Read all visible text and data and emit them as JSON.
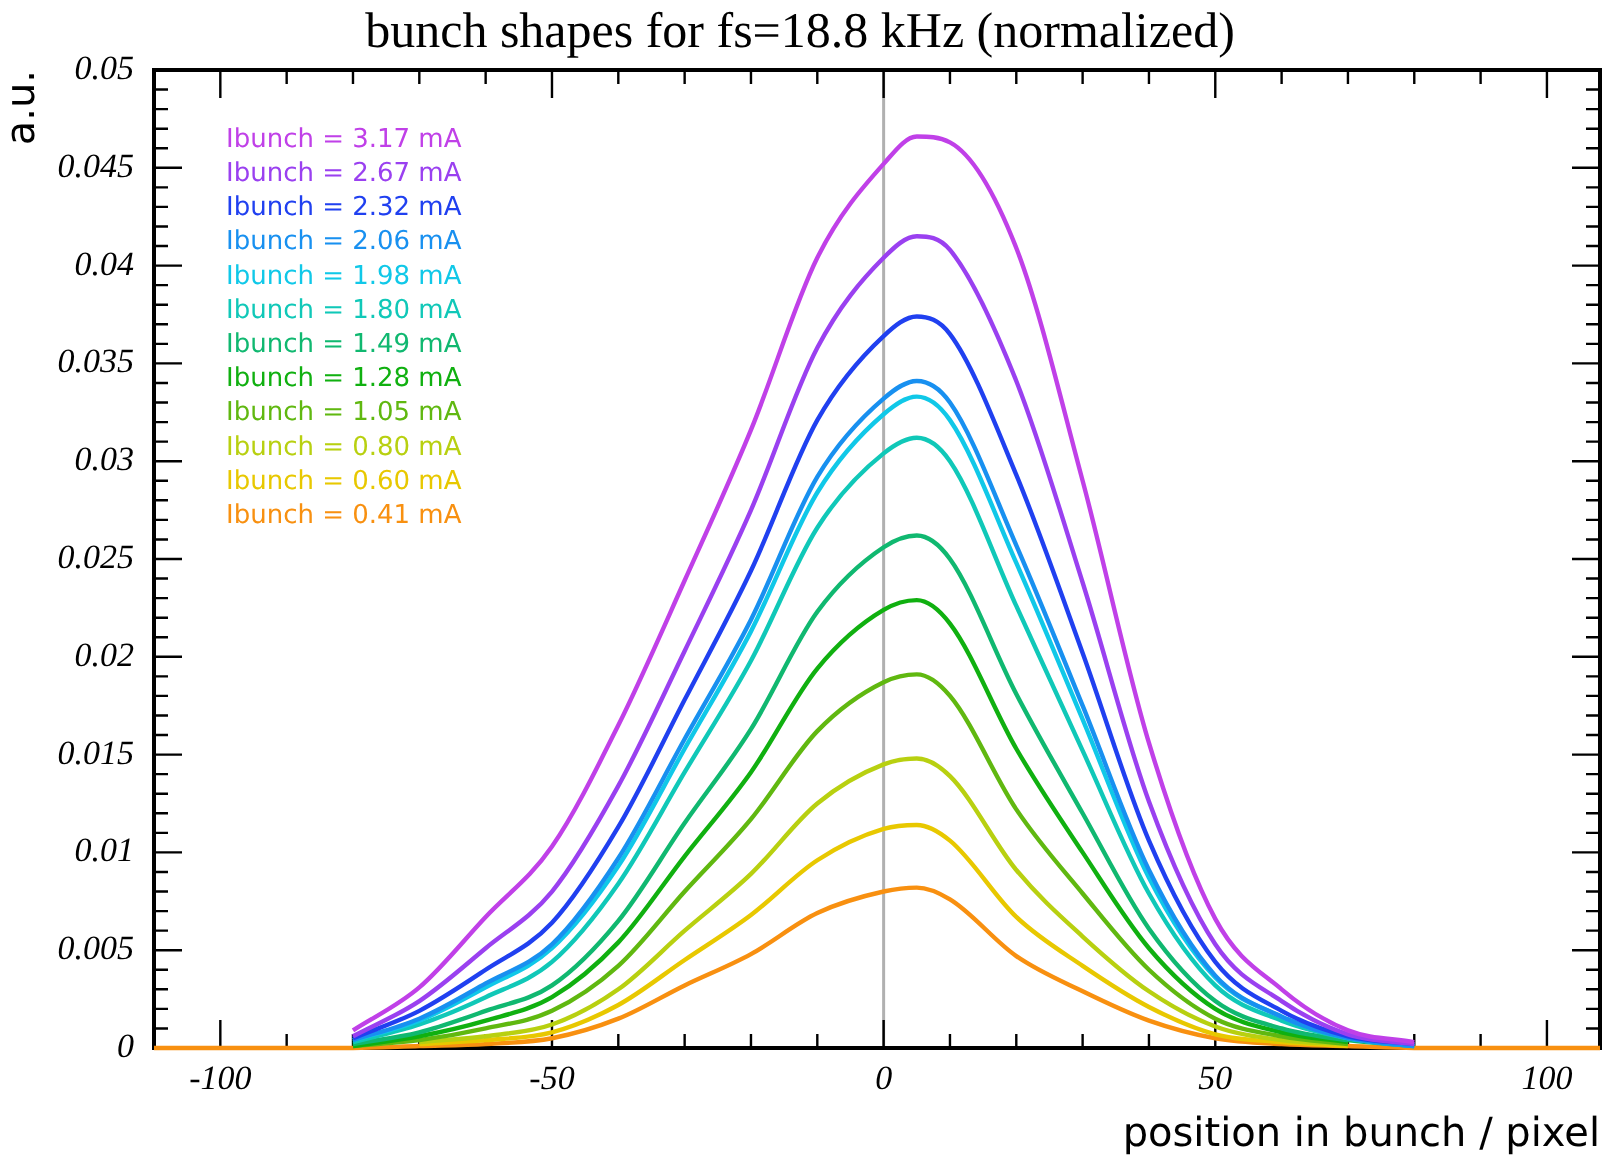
{
  "chart_data": {
    "type": "line",
    "title": "bunch shapes for fs=18.8 kHz (normalized)",
    "xlabel": "position in bunch / pixel",
    "ylabel": "a.u.",
    "x": [
      -110,
      -90,
      -80,
      -70,
      -60,
      -50,
      -40,
      -30,
      -20,
      -10,
      0,
      5,
      10,
      20,
      30,
      40,
      50,
      60,
      70,
      80,
      90,
      108
    ],
    "xlim": [
      -110,
      108
    ],
    "xticks": [
      {
        "value": -110,
        "label": null
      },
      -100,
      {
        "value": -90,
        "label": null
      },
      {
        "value": -80,
        "label": null
      },
      {
        "value": -70,
        "label": null
      },
      {
        "value": -60,
        "label": null
      },
      -50,
      {
        "value": -40,
        "label": null
      },
      {
        "value": -30,
        "label": null
      },
      {
        "value": -20,
        "label": null
      },
      {
        "value": -10,
        "label": null
      },
      0,
      {
        "value": 10,
        "label": null
      },
      {
        "value": 20,
        "label": null
      },
      {
        "value": 30,
        "label": null
      },
      {
        "value": 40,
        "label": null
      },
      50,
      {
        "value": 60,
        "label": null
      },
      {
        "value": 70,
        "label": null
      },
      {
        "value": 80,
        "label": null
      },
      {
        "value": 90,
        "label": null
      },
      100
    ],
    "ylim": [
      0,
      0.05
    ],
    "yticks": [
      0,
      0.005,
      0.01,
      0.015,
      0.02,
      0.025,
      0.03,
      0.035,
      0.04,
      0.045,
      0.05
    ],
    "legend": "top left",
    "marker": "none",
    "line_style": "solid",
    "grid": false,
    "ref_lines": [
      {
        "axis": "x",
        "value": 0,
        "color": "#b0b0b0"
      }
    ],
    "series": [
      {
        "name": "Ibunch = 3.17 mA",
        "color": "#c040e8",
        "values": [
          null,
          null,
          0.0009,
          0.0031,
          0.0067,
          0.0103,
          0.0165,
          0.0239,
          0.0316,
          0.0404,
          0.0452,
          0.0466,
          0.0463,
          0.0409,
          0.029,
          0.0156,
          0.0066,
          0.003,
          0.0009,
          0.0003,
          null,
          null
        ]
      },
      {
        "name": "Ibunch = 2.67 mA",
        "color": "#9a40f0",
        "values": [
          null,
          null,
          0.0006,
          0.0024,
          0.0051,
          0.008,
          0.0134,
          0.0203,
          0.0275,
          0.0358,
          0.0404,
          0.0415,
          0.0408,
          0.0341,
          0.0238,
          0.0126,
          0.0053,
          0.0024,
          0.0007,
          0.0002,
          null,
          null
        ]
      },
      {
        "name": "Ibunch = 2.32 mA",
        "color": "#2040f0",
        "values": [
          null,
          null,
          0.0005,
          0.0019,
          0.004,
          0.0064,
          0.0113,
          0.0178,
          0.0244,
          0.0321,
          0.0364,
          0.0374,
          0.0365,
          0.0293,
          0.0202,
          0.0106,
          0.0044,
          0.0019,
          0.0006,
          0.0002,
          null,
          null
        ]
      },
      {
        "name": "Ibunch = 2.06 mA",
        "color": "#1890f0",
        "values": [
          null,
          null,
          0.0004,
          0.0015,
          0.0033,
          0.0053,
          0.0097,
          0.0158,
          0.0219,
          0.0292,
          0.0332,
          0.0341,
          0.033,
          0.0257,
          0.0175,
          0.0091,
          0.0037,
          0.0016,
          0.0005,
          0.0001,
          null,
          null
        ]
      },
      {
        "name": "Ibunch = 1.98 mA",
        "color": "#10c8e8",
        "values": [
          null,
          null,
          0.0004,
          0.0014,
          0.0031,
          0.0051,
          0.0093,
          0.0153,
          0.0213,
          0.0284,
          0.0324,
          0.0333,
          0.0321,
          0.0248,
          0.0168,
          0.0087,
          0.0036,
          0.0016,
          0.0005,
          0.0001,
          null,
          null
        ]
      },
      {
        "name": "Ibunch = 1.80 mA",
        "color": "#10c8b8",
        "values": [
          null,
          null,
          0.0003,
          0.0012,
          0.0026,
          0.0044,
          0.0084,
          0.0141,
          0.0198,
          0.0266,
          0.0304,
          0.0312,
          0.03,
          0.0226,
          0.0152,
          0.0079,
          0.0032,
          0.0014,
          0.0005,
          0.0001,
          null,
          null
        ]
      },
      {
        "name": "Ibunch = 1.49 mA",
        "color": "#10b870",
        "values": [
          null,
          null,
          0.0002,
          0.0008,
          0.0019,
          0.0032,
          0.0065,
          0.0115,
          0.0163,
          0.0223,
          0.0256,
          0.0262,
          0.025,
          0.0181,
          0.012,
          0.0061,
          0.0024,
          0.001,
          0.0004,
          0.0001,
          null,
          null
        ]
      },
      {
        "name": "Ibunch = 1.28 mA",
        "color": "#10b010",
        "values": [
          null,
          null,
          0.0001,
          0.0006,
          0.0014,
          0.0026,
          0.0054,
          0.0098,
          0.0141,
          0.0194,
          0.0224,
          0.0229,
          0.0217,
          0.0153,
          0.01,
          0.0051,
          0.002,
          0.0008,
          0.0003,
          null,
          null,
          null
        ]
      },
      {
        "name": "Ibunch = 1.05 mA",
        "color": "#60b810",
        "values": [
          null,
          null,
          0.0001,
          0.0004,
          0.001,
          0.0019,
          0.0042,
          0.008,
          0.0117,
          0.0162,
          0.0187,
          0.0191,
          0.018,
          0.0122,
          0.0079,
          0.004,
          0.0015,
          0.0006,
          0.0002,
          null,
          null,
          null
        ]
      },
      {
        "name": "Ibunch = 0.80 mA",
        "color": "#b8d010",
        "values": [
          null,
          null,
          null,
          0.0003,
          0.0006,
          0.0012,
          0.003,
          0.006,
          0.0089,
          0.0125,
          0.0145,
          0.0148,
          0.0139,
          0.0091,
          0.0057,
          0.0029,
          0.0011,
          0.0004,
          0.0002,
          null,
          null,
          null
        ]
      },
      {
        "name": "Ibunch = 0.60 mA",
        "color": "#e8c800",
        "values": [
          null,
          null,
          null,
          0.0002,
          0.0004,
          0.0008,
          0.0022,
          0.0045,
          0.0068,
          0.0096,
          0.0112,
          0.0114,
          0.0106,
          0.0067,
          0.0042,
          0.0021,
          0.0007,
          0.0003,
          0.0001,
          null,
          null,
          null
        ]
      },
      {
        "name": "Ibunch = 0.41 mA",
        "color": "#f89010",
        "values": [
          0,
          0,
          0,
          0.0001,
          0.0002,
          0.0005,
          0.0015,
          0.0032,
          0.0048,
          0.0069,
          0.008,
          0.0082,
          0.0076,
          0.0047,
          0.0029,
          0.0014,
          0.0005,
          0.0002,
          0.0001,
          0,
          0,
          0
        ]
      }
    ]
  }
}
